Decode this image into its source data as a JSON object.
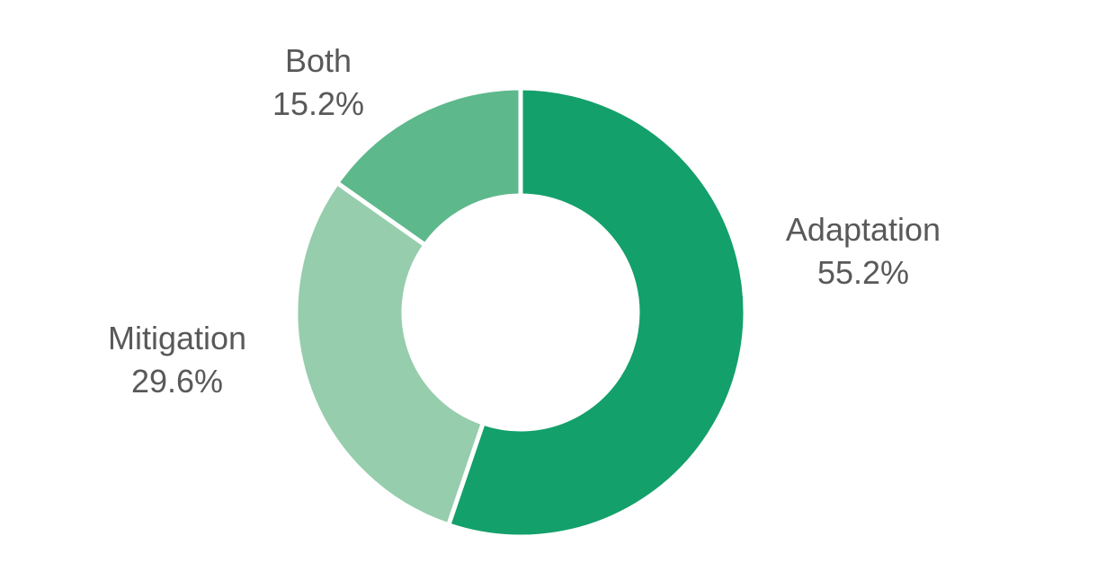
{
  "chart_data": {
    "type": "pie",
    "style": "donut",
    "categories": [
      "Adaptation",
      "Mitigation",
      "Both"
    ],
    "values": [
      55.2,
      29.6,
      15.2
    ],
    "value_labels": [
      "55.2%",
      "29.6%",
      "15.2%"
    ],
    "colors": [
      "#13A06A",
      "#96CDAC",
      "#5DB88B"
    ],
    "start": "12 o'clock",
    "direction": "clockwise",
    "legend": "none",
    "labels": "outside, category name above percentage"
  }
}
